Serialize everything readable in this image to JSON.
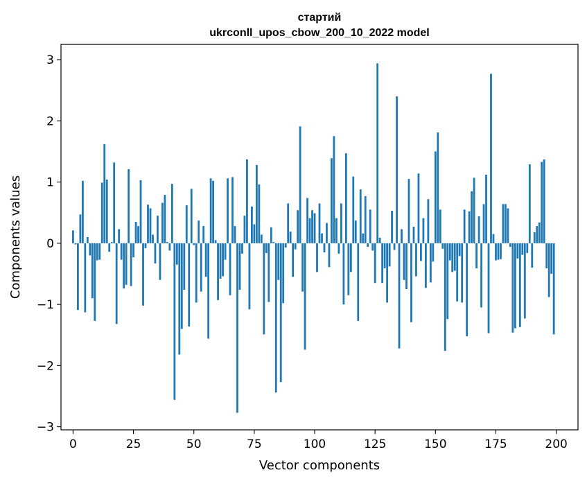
{
  "chart_data": {
    "type": "bar",
    "title": "стартий",
    "subtitle": "ukrconll_upos_cbow_200_10_2022 model",
    "xlabel": "Vector components",
    "ylabel": "Components values",
    "xlim": [
      -5,
      209
    ],
    "ylim": [
      -3.05,
      3.25
    ],
    "xticks": [
      0,
      25,
      50,
      75,
      100,
      125,
      150,
      175,
      200
    ],
    "yticks": [
      3,
      2,
      1,
      0,
      -1,
      -2,
      -3
    ],
    "ytick_labels": [
      "3",
      "2",
      "1",
      "0",
      "−1",
      "−2",
      "−3"
    ],
    "grid": false,
    "bar_color": "#1f77b4",
    "x": [
      0,
      1,
      2,
      3,
      4,
      5,
      6,
      7,
      8,
      9,
      10,
      11,
      12,
      13,
      14,
      15,
      16,
      17,
      18,
      19,
      20,
      21,
      22,
      23,
      24,
      25,
      26,
      27,
      28,
      29,
      30,
      31,
      32,
      33,
      34,
      35,
      36,
      37,
      38,
      39,
      40,
      41,
      42,
      43,
      44,
      45,
      46,
      47,
      48,
      49,
      50,
      51,
      52,
      53,
      54,
      55,
      56,
      57,
      58,
      59,
      60,
      61,
      62,
      63,
      64,
      65,
      66,
      67,
      68,
      69,
      70,
      71,
      72,
      73,
      74,
      75,
      76,
      77,
      78,
      79,
      80,
      81,
      82,
      83,
      84,
      85,
      86,
      87,
      88,
      89,
      90,
      91,
      92,
      93,
      94,
      95,
      96,
      97,
      98,
      99,
      100,
      101,
      102,
      103,
      104,
      105,
      106,
      107,
      108,
      109,
      110,
      111,
      112,
      113,
      114,
      115,
      116,
      117,
      118,
      119,
      120,
      121,
      122,
      123,
      124,
      125,
      126,
      127,
      128,
      129,
      130,
      131,
      132,
      133,
      134,
      135,
      136,
      137,
      138,
      139,
      140,
      141,
      142,
      143,
      144,
      145,
      146,
      147,
      148,
      149,
      150,
      151,
      152,
      153,
      154,
      155,
      156,
      157,
      158,
      159,
      160,
      161,
      162,
      163,
      164,
      165,
      166,
      167,
      168,
      169,
      170,
      171,
      172,
      173,
      174,
      175,
      176,
      177,
      178,
      179,
      180,
      181,
      182,
      183,
      184,
      185,
      186,
      187,
      188,
      189,
      190,
      191,
      192,
      193,
      194,
      195,
      196,
      197,
      198,
      199
    ],
    "values": [
      0.21,
      -0.02,
      -1.09,
      0.47,
      1.02,
      -1.13,
      0.1,
      -0.2,
      -0.9,
      -1.27,
      -0.28,
      -0.27,
      0.99,
      1.62,
      1.04,
      -0.14,
      0.02,
      1.32,
      -1.32,
      0.23,
      -0.27,
      -0.74,
      -0.68,
      1.21,
      -0.7,
      -0.23,
      0.35,
      0.28,
      1.03,
      -1.02,
      -0.08,
      0.63,
      0.57,
      0.14,
      -0.33,
      0.45,
      -0.6,
      0.66,
      0.79,
      0.02,
      -0.12,
      0.97,
      -2.56,
      -0.35,
      -1.82,
      -1.4,
      -0.76,
      0.62,
      -1.36,
      0.89,
      -0.03,
      -0.97,
      0.37,
      -0.79,
      0.28,
      -0.55,
      -1.56,
      1.06,
      1.02,
      0.05,
      -0.93,
      -0.58,
      -0.54,
      -0.27,
      1.06,
      -0.85,
      1.08,
      0.28,
      -2.77,
      -0.76,
      -0.17,
      0.45,
      1.37,
      -1.08,
      0.6,
      0.31,
      1.28,
      0.96,
      0.14,
      -1.49,
      -0.16,
      -0.96,
      0.26,
      0.02,
      -2.44,
      -0.6,
      -2.27,
      -0.98,
      -0.07,
      0.65,
      0.19,
      -0.55,
      -0.1,
      0.54,
      1.91,
      -0.79,
      -1.74,
      0.74,
      0.41,
      0.54,
      0.49,
      -0.47,
      0.65,
      0.16,
      -0.15,
      0.33,
      -0.39,
      1.39,
      1.75,
      0.41,
      -0.17,
      0.65,
      -1.0,
      1.47,
      -0.85,
      -0.47,
      1.09,
      0.37,
      -1.27,
      0.88,
      0.16,
      0.77,
      -0.06,
      0.55,
      -0.12,
      -0.65,
      2.94,
      0.09,
      -0.65,
      -0.41,
      -0.97,
      -0.38,
      0.53,
      -0.11,
      2.4,
      -1.72,
      0.23,
      -0.6,
      -0.75,
      1.05,
      -1.29,
      0.27,
      -0.54,
      1.14,
      -0.29,
      0.41,
      -0.73,
      0.72,
      -0.64,
      -0.3,
      1.5,
      1.81,
      0.55,
      -0.09,
      -1.76,
      -1.24,
      -0.28,
      -0.47,
      -0.45,
      -0.95,
      -0.21,
      -0.97,
      0.55,
      -1.52,
      0.52,
      0.85,
      1.07,
      -0.41,
      0.44,
      -1.05,
      0.64,
      1.12,
      -1.47,
      2.77,
      0.15,
      -0.28,
      -0.27,
      -0.26,
      0.64,
      0.64,
      0.57,
      -0.06,
      -1.46,
      -1.39,
      -0.25,
      -1.37,
      -0.19,
      -1.23,
      -0.16,
      1.29,
      -0.4,
      0.18,
      0.28,
      0.34,
      1.33,
      1.37,
      -0.41,
      -0.88,
      -0.5,
      -1.49
    ]
  }
}
